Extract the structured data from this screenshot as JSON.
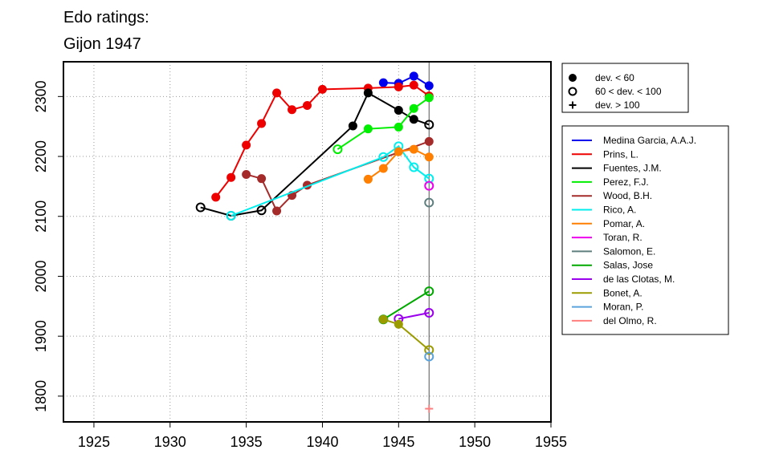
{
  "chart_data": {
    "type": "line",
    "title": "Edo ratings:",
    "subtitle": "Gijon 1947",
    "xlabel": "",
    "ylabel": "",
    "xlim": [
      1923,
      1955
    ],
    "ylim": [
      1757,
      2358
    ],
    "x_ticks": [
      1925,
      1930,
      1935,
      1940,
      1945,
      1950,
      1955
    ],
    "y_ticks": [
      1800,
      1900,
      2000,
      2100,
      2200,
      2300
    ],
    "grid": true,
    "reference_line_x": 1947,
    "marker_legend": [
      {
        "label": "dev. < 60",
        "marker": "filled"
      },
      {
        "label": "60 < dev. < 100",
        "marker": "open"
      },
      {
        "label": "dev. > 100",
        "marker": "plus"
      }
    ],
    "legend_placement": "right",
    "series": [
      {
        "name": "Medina Garcia, A.A.J.",
        "color": "#0000ee",
        "points": [
          {
            "x": 1944,
            "y": 2323,
            "m": "filled"
          },
          {
            "x": 1945,
            "y": 2322,
            "m": "filled"
          },
          {
            "x": 1946,
            "y": 2334,
            "m": "filled"
          },
          {
            "x": 1947,
            "y": 2318,
            "m": "filled"
          }
        ]
      },
      {
        "name": "Prins, L.",
        "color": "#ee0000",
        "points": [
          {
            "x": 1933,
            "y": 2132,
            "m": "filled"
          },
          {
            "x": 1934,
            "y": 2165,
            "m": "filled"
          },
          {
            "x": 1935,
            "y": 2219,
            "m": "filled"
          },
          {
            "x": 1936,
            "y": 2255,
            "m": "filled"
          },
          {
            "x": 1937,
            "y": 2306,
            "m": "filled"
          },
          {
            "x": 1938,
            "y": 2278,
            "m": "filled"
          },
          {
            "x": 1939,
            "y": 2285,
            "m": "filled"
          },
          {
            "x": 1940,
            "y": 2312,
            "m": "filled"
          },
          {
            "x": 1943,
            "y": 2314,
            "m": "filled"
          },
          {
            "x": 1945,
            "y": 2316,
            "m": "filled"
          },
          {
            "x": 1946,
            "y": 2319,
            "m": "filled"
          },
          {
            "x": 1947,
            "y": 2301,
            "m": "filled"
          }
        ]
      },
      {
        "name": "Fuentes, J.M.",
        "color": "#000000",
        "points": [
          {
            "x": 1932,
            "y": 2115,
            "m": "open"
          },
          {
            "x": 1934,
            "y": 2101,
            "m": "open"
          },
          {
            "x": 1936,
            "y": 2110,
            "m": "open"
          },
          {
            "x": 1942,
            "y": 2251,
            "m": "filled"
          },
          {
            "x": 1943,
            "y": 2306,
            "m": "filled"
          },
          {
            "x": 1945,
            "y": 2277,
            "m": "filled"
          },
          {
            "x": 1946,
            "y": 2262,
            "m": "filled"
          },
          {
            "x": 1947,
            "y": 2253,
            "m": "open"
          }
        ]
      },
      {
        "name": "Perez, F.J.",
        "color": "#00ee00",
        "points": [
          {
            "x": 1941,
            "y": 2212,
            "m": "open"
          },
          {
            "x": 1943,
            "y": 2246,
            "m": "filled"
          },
          {
            "x": 1945,
            "y": 2249,
            "m": "filled"
          },
          {
            "x": 1946,
            "y": 2280,
            "m": "filled"
          },
          {
            "x": 1947,
            "y": 2298,
            "m": "filled"
          }
        ]
      },
      {
        "name": "Wood, B.H.",
        "color": "#a52a2a",
        "points": [
          {
            "x": 1935,
            "y": 2170,
            "m": "filled"
          },
          {
            "x": 1936,
            "y": 2163,
            "m": "filled"
          },
          {
            "x": 1937,
            "y": 2109,
            "m": "filled"
          },
          {
            "x": 1938,
            "y": 2135,
            "m": "filled"
          },
          {
            "x": 1939,
            "y": 2152,
            "m": "filled"
          },
          {
            "x": 1947,
            "y": 2225,
            "m": "filled"
          }
        ]
      },
      {
        "name": "Rico, A.",
        "color": "#00eeee",
        "points": [
          {
            "x": 1934,
            "y": 2101,
            "m": "open"
          },
          {
            "x": 1944,
            "y": 2199,
            "m": "open"
          },
          {
            "x": 1945,
            "y": 2217,
            "m": "open"
          },
          {
            "x": 1946,
            "y": 2182,
            "m": "open"
          },
          {
            "x": 1947,
            "y": 2163,
            "m": "open"
          }
        ]
      },
      {
        "name": "Pomar, A.",
        "color": "#ff7f00",
        "points": [
          {
            "x": 1943,
            "y": 2162,
            "m": "filled"
          },
          {
            "x": 1944,
            "y": 2180,
            "m": "filled"
          },
          {
            "x": 1945,
            "y": 2208,
            "m": "filled"
          },
          {
            "x": 1946,
            "y": 2212,
            "m": "filled"
          },
          {
            "x": 1947,
            "y": 2199,
            "m": "filled"
          }
        ]
      },
      {
        "name": "Toran, R.",
        "color": "#ee00ee",
        "points": [
          {
            "x": 1947,
            "y": 2151,
            "m": "open"
          }
        ]
      },
      {
        "name": "Salomon, E.",
        "color": "#5f7f7f",
        "points": [
          {
            "x": 1947,
            "y": 2123,
            "m": "open"
          }
        ]
      },
      {
        "name": "Salas, Jose",
        "color": "#00a800",
        "points": [
          {
            "x": 1944,
            "y": 1928,
            "m": "open"
          },
          {
            "x": 1947,
            "y": 1975,
            "m": "open"
          }
        ]
      },
      {
        "name": "de las Clotas, M.",
        "color": "#9b00ee",
        "points": [
          {
            "x": 1945,
            "y": 1929,
            "m": "open"
          },
          {
            "x": 1947,
            "y": 1939,
            "m": "open"
          }
        ]
      },
      {
        "name": "Bonet, A.",
        "color": "#9b9b00",
        "points": [
          {
            "x": 1944,
            "y": 1928,
            "m": "filled"
          },
          {
            "x": 1945,
            "y": 1920,
            "m": "filled"
          },
          {
            "x": 1947,
            "y": 1877,
            "m": "open"
          }
        ]
      },
      {
        "name": "Moran, P.",
        "color": "#5ba3dc",
        "points": [
          {
            "x": 1947,
            "y": 1866,
            "m": "open"
          }
        ]
      },
      {
        "name": "del Olmo, R.",
        "color": "#ff7f7f",
        "points": [
          {
            "x": 1947,
            "y": 1779,
            "m": "plus"
          }
        ]
      }
    ]
  }
}
